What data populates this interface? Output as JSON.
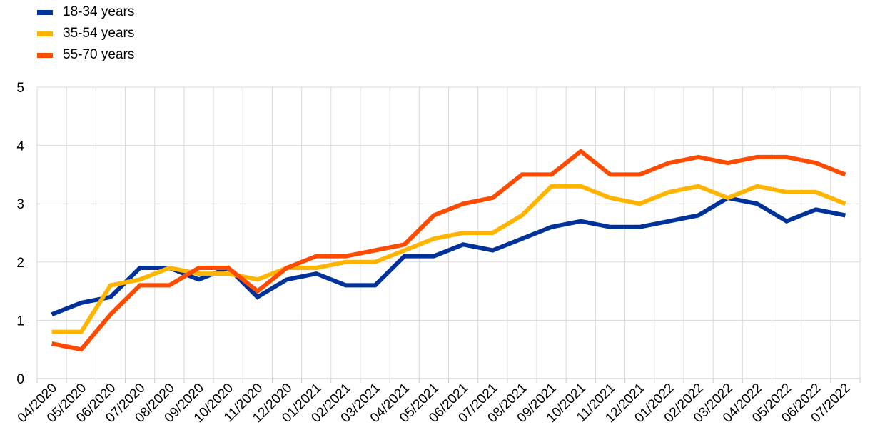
{
  "chart_data": {
    "type": "line",
    "title": "",
    "xlabel": "",
    "ylabel": "",
    "ylim": [
      0,
      5
    ],
    "yticks": [
      "0",
      "1",
      "2",
      "3",
      "4",
      "5"
    ],
    "grid": true,
    "legend_position": "top-left",
    "categories": [
      "04/2020",
      "05/2020",
      "06/2020",
      "07/2020",
      "08/2020",
      "09/2020",
      "10/2020",
      "11/2020",
      "12/2020",
      "01/2021",
      "02/2021",
      "03/2021",
      "04/2021",
      "05/2021",
      "06/2021",
      "07/2021",
      "08/2021",
      "09/2021",
      "10/2021",
      "11/2021",
      "12/2021",
      "01/2022",
      "02/2022",
      "03/2022",
      "04/2022",
      "05/2022",
      "06/2022",
      "07/2022"
    ],
    "series": [
      {
        "name": "18-34 years",
        "color": "#003299",
        "values": [
          1.1,
          1.3,
          1.4,
          1.9,
          1.9,
          1.7,
          1.9,
          1.4,
          1.7,
          1.8,
          1.6,
          1.6,
          2.1,
          2.1,
          2.3,
          2.2,
          2.4,
          2.6,
          2.7,
          2.6,
          2.6,
          2.7,
          2.8,
          3.1,
          3.0,
          2.7,
          2.9,
          2.8
        ]
      },
      {
        "name": "35-54 years",
        "color": "#FFB400",
        "values": [
          0.8,
          0.8,
          1.6,
          1.7,
          1.9,
          1.8,
          1.8,
          1.7,
          1.9,
          1.9,
          2.0,
          2.0,
          2.2,
          2.4,
          2.5,
          2.5,
          2.8,
          3.3,
          3.3,
          3.1,
          3.0,
          3.2,
          3.3,
          3.1,
          3.3,
          3.2,
          3.2,
          3.0
        ]
      },
      {
        "name": "55-70 years",
        "color": "#FF4B00",
        "values": [
          0.6,
          0.5,
          1.1,
          1.6,
          1.6,
          1.9,
          1.9,
          1.5,
          1.9,
          2.1,
          2.1,
          2.2,
          2.3,
          2.8,
          3.0,
          3.1,
          3.5,
          3.5,
          3.9,
          3.5,
          3.5,
          3.7,
          3.8,
          3.7,
          3.8,
          3.8,
          3.7,
          3.5
        ]
      }
    ]
  }
}
